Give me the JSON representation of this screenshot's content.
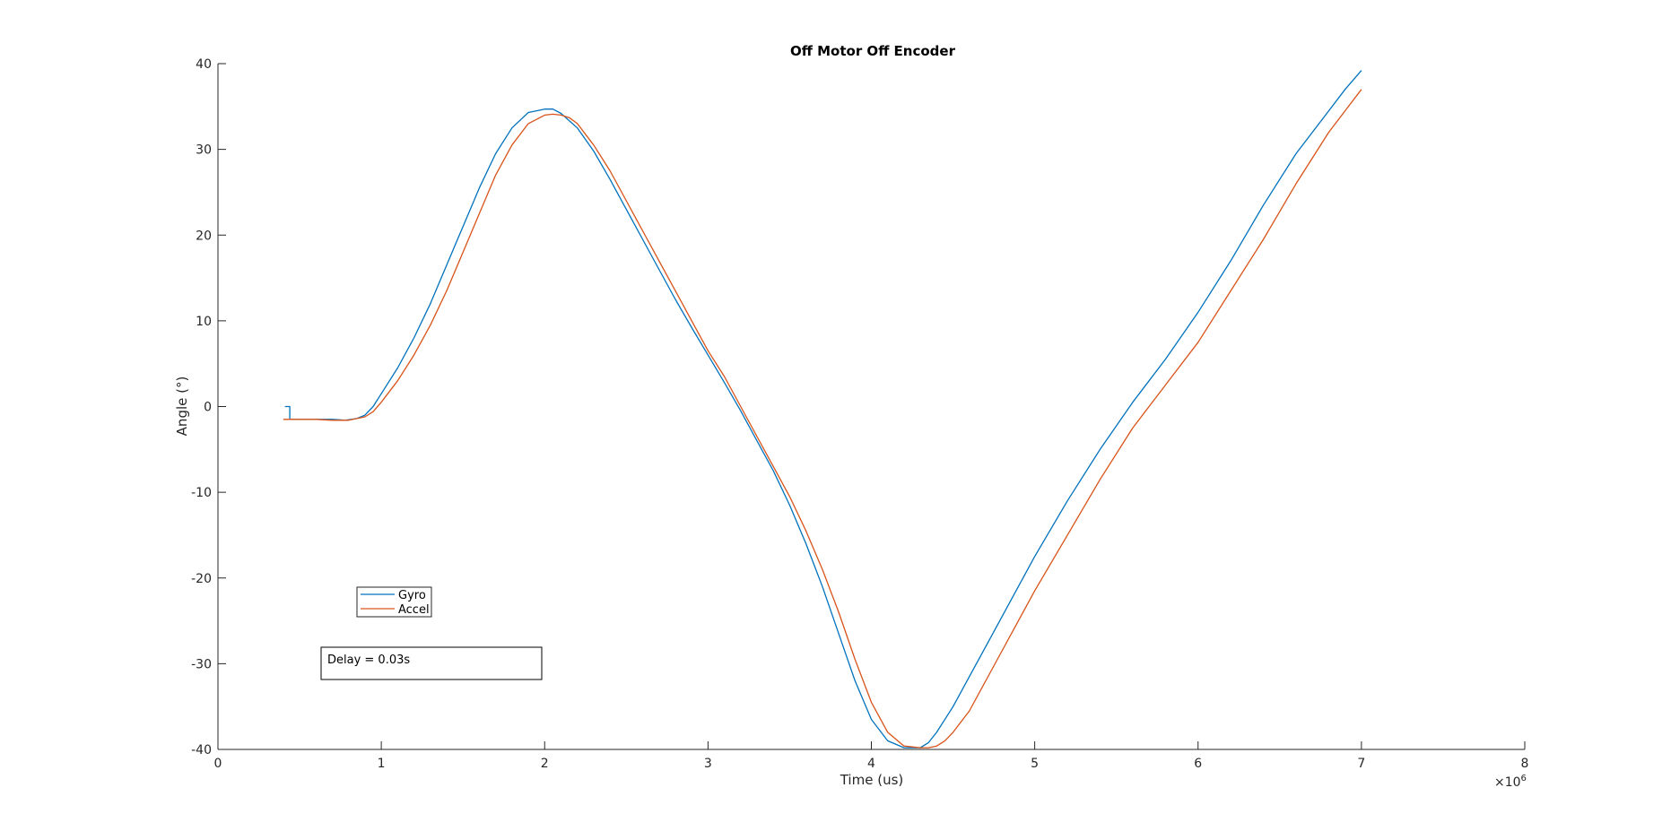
{
  "chart_data": {
    "type": "line",
    "title": "Off Motor Off Encoder",
    "xlabel": "Time (us)",
    "ylabel": "Angle (°)",
    "x_exponent_label": "×10",
    "x_exponent_power": "6",
    "x_scale": 1000000,
    "xlim": [
      0,
      8000000
    ],
    "ylim": [
      -40,
      40
    ],
    "xticks": [
      0,
      1000000,
      2000000,
      3000000,
      4000000,
      5000000,
      6000000,
      7000000,
      8000000
    ],
    "xtick_labels": [
      "0",
      "1",
      "2",
      "3",
      "4",
      "5",
      "6",
      "7",
      "8"
    ],
    "yticks": [
      -40,
      -30,
      -20,
      -10,
      0,
      10,
      20,
      30,
      40
    ],
    "ytick_labels": [
      "-40",
      "-30",
      "-20",
      "-10",
      "0",
      "10",
      "20",
      "30",
      "40"
    ],
    "grid": false,
    "legend_position": "lower-left",
    "series": [
      {
        "name": "Gyro",
        "color": "#0072BD",
        "x": [
          410000,
          440000,
          440000,
          500000,
          600000,
          700000,
          780000,
          850000,
          900000,
          950000,
          1000000,
          1100000,
          1200000,
          1300000,
          1400000,
          1500000,
          1600000,
          1700000,
          1800000,
          1900000,
          2000000,
          2050000,
          2100000,
          2200000,
          2300000,
          2400000,
          2500000,
          2600000,
          2700000,
          2800000,
          2900000,
          3000000,
          3100000,
          3200000,
          3300000,
          3400000,
          3500000,
          3600000,
          3700000,
          3800000,
          3900000,
          4000000,
          4100000,
          4200000,
          4300000,
          4350000,
          4400000,
          4500000,
          4600000,
          4700000,
          4800000,
          4900000,
          5000000,
          5200000,
          5400000,
          5600000,
          5800000,
          6000000,
          6200000,
          6400000,
          6600000,
          6800000,
          6900000,
          7000000
        ],
        "y": [
          0,
          0,
          -1.5,
          -1.5,
          -1.5,
          -1.5,
          -1.6,
          -1.4,
          -1.0,
          0,
          1.5,
          4.5,
          8,
          12,
          16.5,
          21,
          25.5,
          29.5,
          32.5,
          34.3,
          34.7,
          34.7,
          34.2,
          32.5,
          29.8,
          26.5,
          23,
          19.5,
          16,
          12.5,
          9.2,
          6,
          2.8,
          -0.5,
          -4,
          -7.5,
          -11.5,
          -16,
          -21,
          -26.5,
          -32,
          -36.5,
          -39,
          -39.8,
          -39.8,
          -39.2,
          -38,
          -35,
          -31.5,
          -28,
          -24.5,
          -21,
          -17.5,
          -11,
          -5,
          0.5,
          5.5,
          11,
          17,
          23.5,
          29.5,
          34.5,
          37,
          39.2
        ]
      },
      {
        "name": "Accel",
        "color": "#D95319",
        "x": [
          400000,
          500000,
          600000,
          700000,
          800000,
          900000,
          950000,
          1000000,
          1100000,
          1200000,
          1300000,
          1400000,
          1500000,
          1600000,
          1700000,
          1800000,
          1900000,
          2000000,
          2050000,
          2100000,
          2150000,
          2200000,
          2300000,
          2400000,
          2500000,
          2600000,
          2700000,
          2800000,
          2900000,
          3000000,
          3100000,
          3200000,
          3300000,
          3400000,
          3500000,
          3600000,
          3700000,
          3800000,
          3900000,
          4000000,
          4100000,
          4200000,
          4300000,
          4350000,
          4400000,
          4450000,
          4500000,
          4600000,
          4700000,
          4800000,
          4900000,
          5000000,
          5200000,
          5400000,
          5600000,
          5800000,
          6000000,
          6200000,
          6400000,
          6600000,
          6800000,
          6900000,
          7000000
        ],
        "y": [
          -1.5,
          -1.5,
          -1.5,
          -1.6,
          -1.6,
          -1.2,
          -0.6,
          0.5,
          3,
          6,
          9.5,
          13.5,
          18,
          22.5,
          27,
          30.5,
          33,
          34,
          34.1,
          34,
          33.7,
          33,
          30.5,
          27.5,
          24,
          20.5,
          17,
          13.5,
          10,
          6.5,
          3.5,
          0,
          -3.5,
          -7,
          -10.5,
          -14.5,
          -19,
          -24,
          -29.5,
          -34.5,
          -38,
          -39.6,
          -39.8,
          -39.8,
          -39.6,
          -39,
          -38,
          -35.5,
          -32,
          -28.5,
          -25,
          -21.5,
          -15,
          -8.5,
          -2.5,
          2.5,
          7.5,
          13.5,
          19.5,
          26,
          32,
          34.5,
          37
        ]
      }
    ],
    "annotation": "Delay  = 0.03s"
  }
}
